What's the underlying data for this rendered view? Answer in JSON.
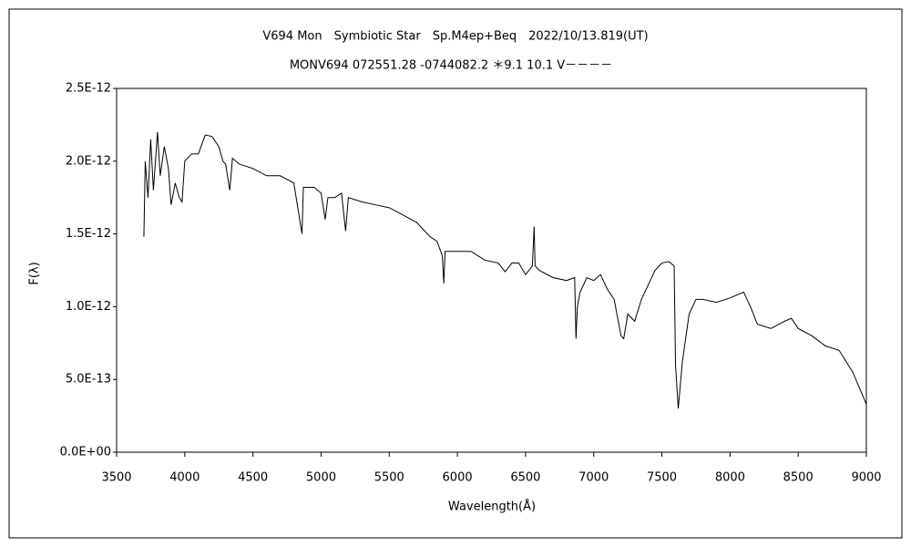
{
  "chart_data": {
    "type": "line",
    "title": "V694 Mon　Symbiotic Star　Sp.M4ep+Beq　2022/10/13.819(UT)",
    "subtitle": "MONV694 072551.28 -0744082.2 ＊9.1 10.1 V－－－－",
    "x_label": "Wavelength(Å)",
    "y_label": "F(λ)",
    "xlim": [
      3500,
      9000
    ],
    "xticks": [
      3500,
      4000,
      4500,
      5000,
      5500,
      6000,
      6500,
      7000,
      7500,
      8000,
      8500,
      9000
    ],
    "ylim": [
      0,
      2.5e-12
    ],
    "yticks": [
      {
        "value": 0,
        "label": "0.0E+00"
      },
      {
        "value": 5e-13,
        "label": "5.0E-13"
      },
      {
        "value": 1e-12,
        "label": "1.0E-12"
      },
      {
        "value": 1.5e-12,
        "label": "1.5E-12"
      },
      {
        "value": 2e-12,
        "label": "2.0E-12"
      },
      {
        "value": 2.5e-12,
        "label": "2.5E-12"
      }
    ],
    "grid": false,
    "color": "#000000",
    "x": [
      3700,
      3710,
      3730,
      3750,
      3770,
      3800,
      3820,
      3850,
      3880,
      3900,
      3930,
      3960,
      3980,
      4000,
      4050,
      4100,
      4150,
      4200,
      4250,
      4280,
      4300,
      4330,
      4350,
      4400,
      4500,
      4600,
      4700,
      4800,
      4860,
      4870,
      4950,
      5000,
      5030,
      5050,
      5100,
      5150,
      5180,
      5200,
      5300,
      5400,
      5500,
      5600,
      5700,
      5800,
      5850,
      5890,
      5900,
      5910,
      6000,
      6100,
      6200,
      6300,
      6350,
      6400,
      6450,
      6500,
      6550,
      6563,
      6570,
      6600,
      6700,
      6800,
      6860,
      6870,
      6880,
      6900,
      6950,
      7000,
      7050,
      7100,
      7150,
      7200,
      7220,
      7250,
      7300,
      7350,
      7400,
      7450,
      7500,
      7550,
      7590,
      7600,
      7620,
      7650,
      7700,
      7750,
      7800,
      7900,
      8000,
      8100,
      8150,
      8200,
      8300,
      8400,
      8450,
      8500,
      8600,
      8700,
      8800,
      8900,
      9000
    ],
    "values": [
      1.48e-12,
      2e-12,
      1.75e-12,
      2.15e-12,
      1.8e-12,
      2.2e-12,
      1.9e-12,
      2.1e-12,
      1.95e-12,
      1.7e-12,
      1.85e-12,
      1.75e-12,
      1.72e-12,
      2e-12,
      2.05e-12,
      2.05e-12,
      2.18e-12,
      2.17e-12,
      2.1e-12,
      2e-12,
      1.98e-12,
      1.8e-12,
      2.02e-12,
      1.98e-12,
      1.95e-12,
      1.9e-12,
      1.9e-12,
      1.85e-12,
      1.5e-12,
      1.82e-12,
      1.82e-12,
      1.78e-12,
      1.6e-12,
      1.75e-12,
      1.75e-12,
      1.78e-12,
      1.52e-12,
      1.75e-12,
      1.72e-12,
      1.7e-12,
      1.68e-12,
      1.63e-12,
      1.58e-12,
      1.48e-12,
      1.45e-12,
      1.35e-12,
      1.16e-12,
      1.38e-12,
      1.38e-12,
      1.38e-12,
      1.32e-12,
      1.3e-12,
      1.24e-12,
      1.3e-12,
      1.3e-12,
      1.22e-12,
      1.28e-12,
      1.55e-12,
      1.28e-12,
      1.25e-12,
      1.2e-12,
      1.18e-12,
      1.2e-12,
      7.8e-13,
      1e-12,
      1.1e-12,
      1.2e-12,
      1.18e-12,
      1.22e-12,
      1.12e-12,
      1.05e-12,
      8e-13,
      7.8e-13,
      9.5e-13,
      9e-13,
      1.05e-12,
      1.15e-12,
      1.25e-12,
      1.3e-12,
      1.31e-12,
      1.28e-12,
      6e-13,
      3e-13,
      6.2e-13,
      9.5e-13,
      1.05e-12,
      1.05e-12,
      1.03e-12,
      1.06e-12,
      1.1e-12,
      1e-12,
      8.8e-13,
      8.5e-13,
      9e-13,
      9.2e-13,
      8.5e-13,
      8e-13,
      7.3e-13,
      7e-13,
      5.5e-13,
      3.3e-13
    ]
  }
}
